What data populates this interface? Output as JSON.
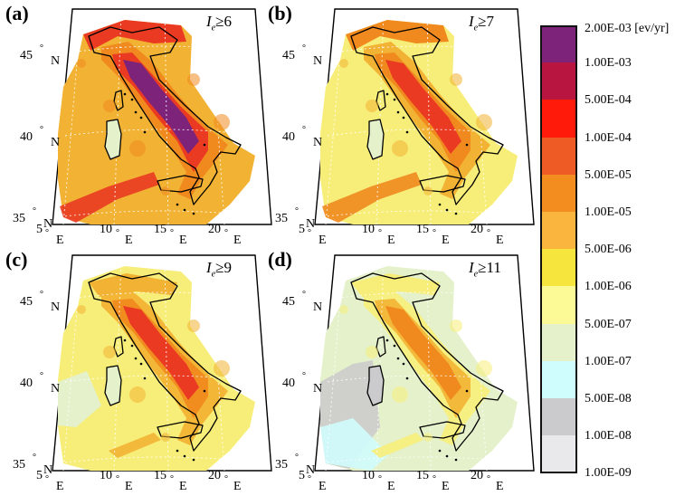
{
  "panels": [
    {
      "label": "(a)",
      "threshold": "I",
      "sub": "e",
      "sym": "≥6"
    },
    {
      "label": "(b)",
      "threshold": "I",
      "sub": "e",
      "sym": "≥7"
    },
    {
      "label": "(c)",
      "threshold": "I",
      "sub": "e",
      "sym": "≥9"
    },
    {
      "label": "(d)",
      "threshold": "I",
      "sub": "e",
      "sym": "≥11"
    }
  ],
  "ticks": {
    "lat": [
      {
        "v": "45",
        "u": "N"
      },
      {
        "v": "40",
        "u": "N"
      },
      {
        "v": "35",
        "u": "N"
      }
    ],
    "lon": [
      {
        "v": "5",
        "u": "E"
      },
      {
        "v": "10",
        "u": "E"
      },
      {
        "v": "15",
        "u": "E"
      },
      {
        "v": "20",
        "u": "E"
      }
    ],
    "degree": "°"
  },
  "legend": {
    "unit_label": "2.00E-03 [ev/yr]",
    "labels": [
      "1.00E-03",
      "5.00E-04",
      "1.00E-04",
      "5.00E-05",
      "1.00E-05",
      "5.00E-06",
      "1.00E-06",
      "5.00E-07",
      "1.00E-07",
      "5.00E-08",
      "1.00E-08",
      "1.00E-09"
    ],
    "colors": [
      "#7d2379",
      "#b81540",
      "#ff1a0a",
      "#ee5b25",
      "#f48d20",
      "#f9b53d",
      "#f5e53c",
      "#fbfa96",
      "#e4f1cb",
      "#cffcfd",
      "#cbcacc",
      "#e9e8ea"
    ]
  },
  "map_colors": {
    "outer": "#f2b233",
    "mid": "#f08a1f",
    "high": "#ea3a22",
    "core": "#7d2379",
    "pale": "#f7ee7a",
    "verypale": "#e4f1cb",
    "cyan": "#cffcfd",
    "grey": "#cbcacc"
  }
}
